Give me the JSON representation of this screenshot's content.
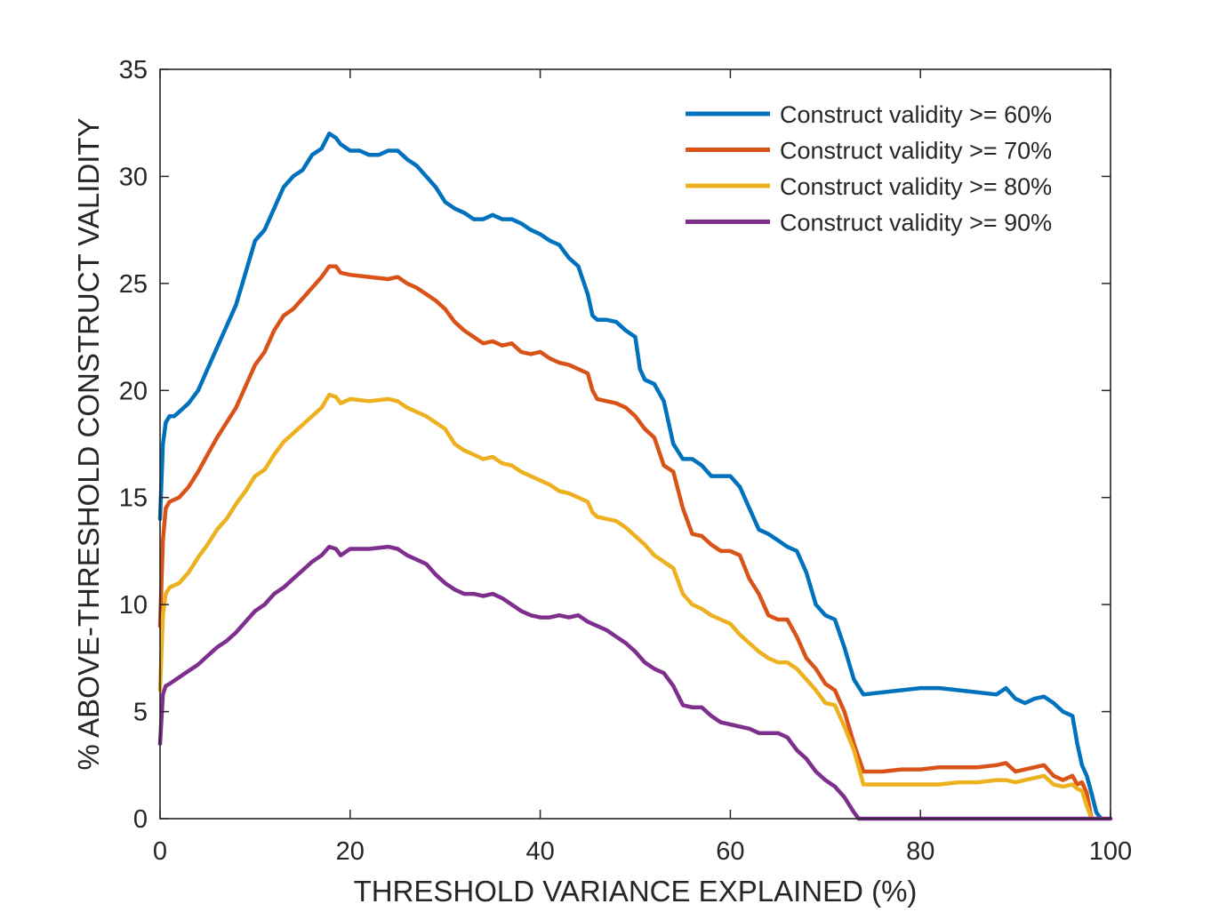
{
  "chart_data": {
    "type": "line",
    "title": "",
    "xlabel": "THRESHOLD VARIANCE EXPLAINED (%)",
    "ylabel": "% ABOVE-THRESHOLD CONSTRUCT VALIDITY",
    "xlim": [
      0,
      100
    ],
    "ylim": [
      0,
      35
    ],
    "xticks": [
      0,
      20,
      40,
      60,
      80,
      100
    ],
    "yticks": [
      0,
      5,
      10,
      15,
      20,
      25,
      30,
      35
    ],
    "xtick_labels": [
      "0",
      "20",
      "40",
      "60",
      "80",
      "100"
    ],
    "ytick_labels": [
      "0",
      "5",
      "10",
      "15",
      "20",
      "25",
      "30",
      "35"
    ],
    "grid": false,
    "legend_position": "top-right",
    "series": [
      {
        "name": "Construct validity >= 60%",
        "color": "#0072BD",
        "x": [
          0,
          0.3,
          0.6,
          1,
          1.5,
          2,
          3,
          4,
          5,
          6,
          7,
          8,
          9,
          10,
          11,
          12,
          13,
          14,
          15,
          16,
          17,
          17.8,
          18.5,
          19,
          20,
          21,
          22,
          23,
          24,
          25,
          26,
          27,
          28,
          29,
          30,
          31,
          32,
          33,
          34,
          35,
          36,
          37,
          38,
          39,
          40,
          41,
          42,
          43,
          44,
          45,
          45.5,
          46,
          47,
          48,
          49,
          50,
          50.5,
          51,
          52,
          53,
          54,
          55,
          56,
          57,
          58,
          59,
          60,
          61,
          62,
          63,
          64,
          65,
          66,
          67,
          68,
          69,
          70,
          71,
          72,
          73,
          74,
          76,
          78,
          80,
          82,
          84,
          86,
          88,
          89,
          90,
          91,
          92,
          93,
          94,
          95,
          96,
          96.5,
          97,
          97.5,
          98,
          98.5,
          99
        ],
        "y": [
          14,
          17.5,
          18.5,
          18.8,
          18.8,
          19,
          19.4,
          20,
          21,
          22,
          23,
          24,
          25.5,
          27,
          27.5,
          28.5,
          29.5,
          30,
          30.3,
          31,
          31.3,
          32,
          31.8,
          31.5,
          31.2,
          31.2,
          31,
          31,
          31.2,
          31.2,
          30.8,
          30.5,
          30,
          29.5,
          28.8,
          28.5,
          28.3,
          28,
          28,
          28.2,
          28,
          28,
          27.8,
          27.5,
          27.3,
          27,
          26.8,
          26.2,
          25.8,
          24.5,
          23.5,
          23.3,
          23.3,
          23.2,
          22.8,
          22.5,
          21,
          20.5,
          20.3,
          19.5,
          17.5,
          16.8,
          16.8,
          16.5,
          16,
          16,
          16,
          15.5,
          14.5,
          13.5,
          13.3,
          13,
          12.7,
          12.5,
          11.5,
          10,
          9.5,
          9.3,
          8,
          6.5,
          5.8,
          5.9,
          6,
          6.1,
          6.1,
          6,
          5.9,
          5.8,
          6.1,
          5.6,
          5.4,
          5.6,
          5.7,
          5.4,
          5,
          4.8,
          3.5,
          2.5,
          2,
          1.2,
          0.3,
          0
        ]
      },
      {
        "name": "Construct validity >= 70%",
        "color": "#D95319",
        "x": [
          0,
          0.3,
          0.6,
          1,
          2,
          3,
          4,
          5,
          6,
          7,
          8,
          9,
          10,
          11,
          12,
          13,
          14,
          15,
          16,
          17,
          17.8,
          18.5,
          19,
          20,
          22,
          24,
          25,
          26,
          27,
          28,
          29,
          30,
          31,
          32,
          33,
          34,
          35,
          36,
          37,
          38,
          39,
          40,
          41,
          42,
          43,
          44,
          45,
          45.5,
          46,
          47,
          48,
          49,
          50,
          51,
          52,
          53,
          54,
          55,
          56,
          57,
          58,
          59,
          60,
          61,
          62,
          63,
          64,
          65,
          66,
          67,
          68,
          69,
          70,
          71,
          72,
          73,
          74,
          76,
          78,
          80,
          82,
          84,
          86,
          88,
          89,
          90,
          91,
          92,
          93,
          94,
          95,
          96,
          96.5,
          97,
          97.5,
          98
        ],
        "y": [
          9,
          13,
          14.5,
          14.8,
          15,
          15.5,
          16.2,
          17,
          17.8,
          18.5,
          19.2,
          20.2,
          21.2,
          21.8,
          22.8,
          23.5,
          23.8,
          24.3,
          24.8,
          25.3,
          25.8,
          25.8,
          25.5,
          25.4,
          25.3,
          25.2,
          25.3,
          25,
          24.8,
          24.5,
          24.2,
          23.8,
          23.2,
          22.8,
          22.5,
          22.2,
          22.3,
          22.1,
          22.2,
          21.8,
          21.7,
          21.8,
          21.5,
          21.3,
          21.2,
          21,
          20.8,
          20,
          19.6,
          19.5,
          19.4,
          19.2,
          18.8,
          18.2,
          17.8,
          16.5,
          16.2,
          14.5,
          13.3,
          13.2,
          12.8,
          12.5,
          12.5,
          12.3,
          11.2,
          10.5,
          9.5,
          9.3,
          9.3,
          8.5,
          7.5,
          7,
          6.3,
          6,
          5,
          3.5,
          2.2,
          2.2,
          2.3,
          2.3,
          2.4,
          2.4,
          2.4,
          2.5,
          2.6,
          2.2,
          2.3,
          2.4,
          2.5,
          2,
          1.8,
          2,
          1.6,
          1.7,
          1.2,
          0
        ]
      },
      {
        "name": "Construct validity >= 80%",
        "color": "#EDB120",
        "x": [
          0,
          0.3,
          0.6,
          1,
          2,
          3,
          4,
          5,
          6,
          7,
          8,
          9,
          10,
          11,
          12,
          13,
          14,
          15,
          16,
          17,
          17.8,
          18.5,
          19,
          20,
          22,
          24,
          25,
          26,
          27,
          28,
          29,
          30,
          31,
          32,
          33,
          34,
          35,
          36,
          37,
          38,
          39,
          40,
          41,
          42,
          43,
          44,
          45,
          45.5,
          46,
          47,
          48,
          49,
          50,
          51,
          52,
          53,
          54,
          55,
          56,
          57,
          58,
          59,
          60,
          61,
          62,
          63,
          64,
          65,
          66,
          67,
          68,
          69,
          70,
          71,
          72,
          73,
          74,
          76,
          78,
          80,
          82,
          84,
          86,
          88,
          89,
          90,
          91,
          92,
          93,
          94,
          95,
          96,
          96.5,
          97,
          97.5,
          98
        ],
        "y": [
          6,
          9.5,
          10.5,
          10.8,
          11,
          11.5,
          12.2,
          12.8,
          13.5,
          14,
          14.7,
          15.3,
          16,
          16.3,
          17,
          17.6,
          18,
          18.4,
          18.8,
          19.2,
          19.8,
          19.7,
          19.4,
          19.6,
          19.5,
          19.6,
          19.5,
          19.2,
          19,
          18.8,
          18.5,
          18.2,
          17.5,
          17.2,
          17,
          16.8,
          16.9,
          16.6,
          16.5,
          16.2,
          16,
          15.8,
          15.6,
          15.3,
          15.2,
          15,
          14.8,
          14.3,
          14.1,
          14,
          13.9,
          13.6,
          13.2,
          12.8,
          12.3,
          12,
          11.7,
          10.5,
          10,
          9.8,
          9.5,
          9.3,
          9.1,
          8.6,
          8.2,
          7.8,
          7.5,
          7.3,
          7.3,
          7,
          6.5,
          6,
          5.4,
          5.3,
          4.3,
          3.2,
          1.6,
          1.6,
          1.6,
          1.6,
          1.6,
          1.7,
          1.7,
          1.8,
          1.8,
          1.7,
          1.8,
          1.9,
          2,
          1.6,
          1.5,
          1.6,
          1.4,
          1.3,
          0.6,
          0
        ]
      },
      {
        "name": "Construct validity >= 90%",
        "color": "#7E2F8E",
        "x": [
          0,
          0.3,
          0.6,
          1,
          2,
          3,
          4,
          5,
          6,
          7,
          8,
          9,
          10,
          11,
          12,
          13,
          14,
          15,
          16,
          17,
          17.8,
          18.5,
          19,
          20,
          22,
          24,
          25,
          26,
          27,
          28,
          29,
          30,
          31,
          32,
          33,
          34,
          35,
          36,
          37,
          38,
          39,
          40,
          41,
          42,
          43,
          44,
          45,
          46,
          47,
          48,
          49,
          50,
          51,
          52,
          53,
          54,
          55,
          56,
          57,
          58,
          59,
          60,
          61,
          62,
          63,
          64,
          65,
          66,
          67,
          68,
          69,
          70,
          71,
          72,
          73,
          73.5,
          76,
          80,
          85,
          90,
          95,
          100
        ],
        "y": [
          3.5,
          5.8,
          6.2,
          6.3,
          6.6,
          6.9,
          7.2,
          7.6,
          8,
          8.3,
          8.7,
          9.2,
          9.7,
          10,
          10.5,
          10.8,
          11.2,
          11.6,
          12,
          12.3,
          12.7,
          12.6,
          12.3,
          12.6,
          12.6,
          12.7,
          12.6,
          12.3,
          12.1,
          11.9,
          11.4,
          11,
          10.7,
          10.5,
          10.5,
          10.4,
          10.5,
          10.3,
          10,
          9.7,
          9.5,
          9.4,
          9.4,
          9.5,
          9.4,
          9.5,
          9.2,
          9,
          8.8,
          8.5,
          8.2,
          7.8,
          7.3,
          7,
          6.8,
          6.2,
          5.3,
          5.2,
          5.2,
          4.8,
          4.5,
          4.4,
          4.3,
          4.2,
          4,
          4,
          4,
          3.8,
          3.2,
          2.8,
          2.2,
          1.8,
          1.5,
          1,
          0.3,
          0,
          0,
          0,
          0,
          0,
          0,
          0
        ]
      }
    ]
  }
}
